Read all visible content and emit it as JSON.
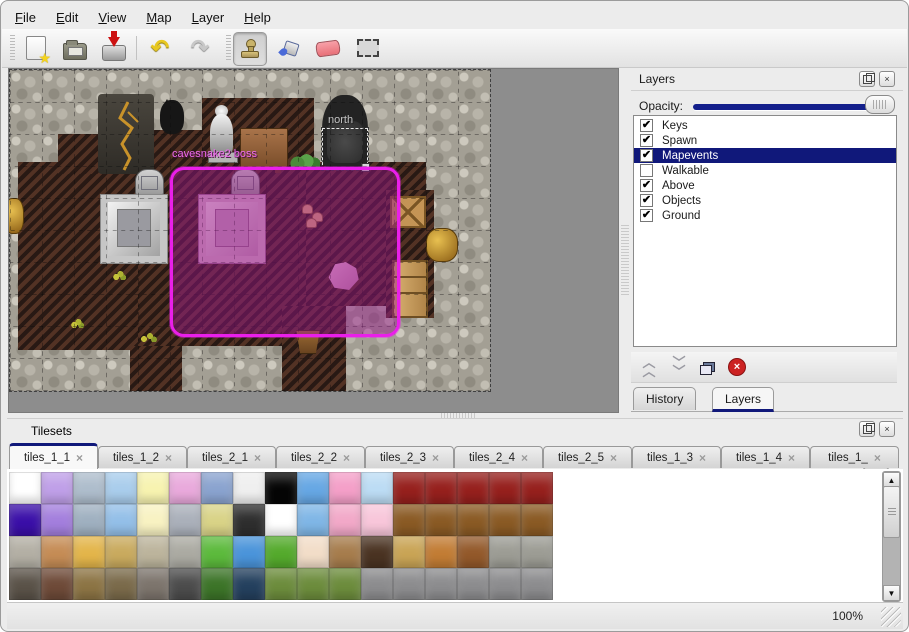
{
  "menu": {
    "items": [
      {
        "label": "File"
      },
      {
        "label": "Edit"
      },
      {
        "label": "View"
      },
      {
        "label": "Map"
      },
      {
        "label": "Layer"
      },
      {
        "label": "Help"
      }
    ]
  },
  "toolbar": {
    "icons": [
      "new-file-icon",
      "open-file-icon",
      "save-file-icon",
      "undo-icon",
      "redo-icon",
      "stamp-tool-icon",
      "fill-tool-icon",
      "eraser-tool-icon",
      "rect-select-tool-icon"
    ],
    "selected_tool": "stamp-tool"
  },
  "map": {
    "north_label": "north",
    "event_label": "cavesnake2 boss"
  },
  "layers_panel": {
    "title": "Layers",
    "opacity_label": "Opacity:",
    "layers": [
      {
        "name": "Keys",
        "checked": true,
        "selected": false
      },
      {
        "name": "Spawn",
        "checked": true,
        "selected": false
      },
      {
        "name": "Mapevents",
        "checked": true,
        "selected": true
      },
      {
        "name": "Walkable",
        "checked": false,
        "selected": false
      },
      {
        "name": "Above",
        "checked": true,
        "selected": false
      },
      {
        "name": "Objects",
        "checked": true,
        "selected": false
      },
      {
        "name": "Ground",
        "checked": true,
        "selected": false
      }
    ],
    "buttons": [
      "raise-layer",
      "lower-layer",
      "duplicate-layer",
      "delete-layer"
    ],
    "tabs": [
      {
        "label": "History",
        "active": false
      },
      {
        "label": "Layers",
        "active": true
      }
    ]
  },
  "tilesets_panel": {
    "title": "Tilesets",
    "tabs": [
      {
        "label": "tiles_1_1",
        "active": true
      },
      {
        "label": "tiles_1_2",
        "active": false
      },
      {
        "label": "tiles_2_1",
        "active": false
      },
      {
        "label": "tiles_2_2",
        "active": false
      },
      {
        "label": "tiles_2_3",
        "active": false
      },
      {
        "label": "tiles_2_4",
        "active": false
      },
      {
        "label": "tiles_2_5",
        "active": false
      },
      {
        "label": "tiles_1_3",
        "active": false
      },
      {
        "label": "tiles_1_4",
        "active": false
      },
      {
        "label": "tiles_1_",
        "active": false
      }
    ],
    "palette": [
      [
        "#ffffff",
        "#bf9fe8",
        "#aebdcc",
        "#a9cdec",
        "#f7f3b0",
        "#e9a9dc",
        "#8aa3cf",
        "#efefef",
        "#050505",
        "#66a7e4",
        "#f49fc8",
        "#bcdcf4",
        "#96201d",
        "#96201d",
        "#96201d",
        "#96201d",
        "#96201d"
      ],
      [
        "#3a0fa8",
        "#a37edd",
        "#9fb0c0",
        "#93bfe8",
        "#f8f2c2",
        "#aab0ba",
        "#d9d387",
        "#2e2e2e",
        "#ffffff",
        "#7fb6e6",
        "#f2a8c8",
        "#f8c6da",
        "#8a5a24",
        "#8a5a24",
        "#8a5a24",
        "#8a5a24",
        "#8a5a24"
      ],
      [
        "#b3afa4",
        "#c58c55",
        "#e3b54a",
        "#c9aa5e",
        "#bcb49c",
        "#abaaa2",
        "#5cba3c",
        "#4a94da",
        "#54aa2c",
        "#f2ddc8",
        "#a67c4c",
        "#4a3322",
        "#c9a455",
        "#c27c34",
        "#93592a",
        "#9c9c94",
        "#9c9c94"
      ],
      [
        "#5a5248",
        "#6e4a38",
        "#8c7444",
        "#7a6a4a",
        "#7c746c",
        "#4c4c4c",
        "#3c7428",
        "#24405e",
        "#6c8c3c",
        "#6c8c3c",
        "#6c8c3c",
        "#8c8c8e",
        "#8c8c8e",
        "#8c8c8e",
        "#8c8c8e",
        "#8c8c8e",
        "#8c8c8e"
      ]
    ]
  },
  "status": {
    "zoom": "100%"
  },
  "colors": {
    "accent_navy": "#10187a",
    "selection_magenta": "#ea1fea",
    "map_floor": "#38231b",
    "map_wall": "#a39f94"
  }
}
